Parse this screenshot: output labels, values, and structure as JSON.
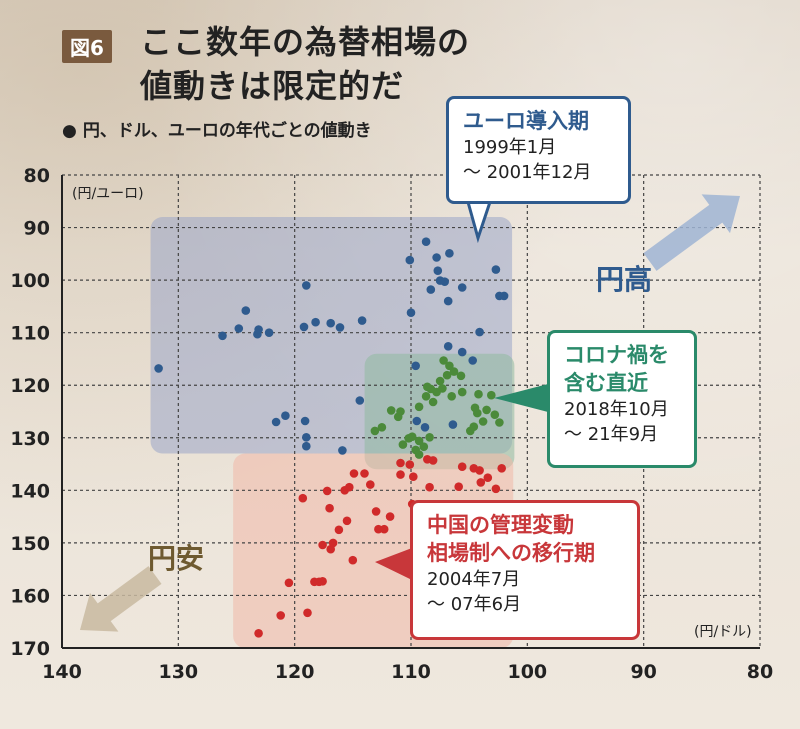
{
  "figure_badge": "図6",
  "title_line1": "ここ数年の為替相場の",
  "title_line2": "値動きは限定的だ",
  "subtitle": "円、ドル、ユーロの年代ごとの値動き",
  "subtitle_bullet": "●",
  "callouts": {
    "euro": {
      "title": "ユーロ導入期",
      "line1": "1999年1月",
      "line2": "～ 2001年12月"
    },
    "corona": {
      "title1": "コロナ禍を",
      "title2": "含む直近",
      "line1": "2018年10月",
      "line2": "～ 21年9月"
    },
    "china": {
      "title1": "中国の管理変動",
      "title2": "相場制への移行期",
      "line1": "2004年7月",
      "line2": "～ 07年6月"
    }
  },
  "arrows": {
    "yen_high": "円高",
    "yen_low": "円安"
  },
  "colors": {
    "euro": "#2f5b8e",
    "corona": "#4b8a3a",
    "china": "#d02a2a",
    "euro_region": "#9aa6c8",
    "corona_region": "#8fb9a0",
    "china_region": "#f0b8a8",
    "callout_euro": "#2f5b8e",
    "callout_corona": "#2a8a6a",
    "callout_china": "#c8373a"
  },
  "chart_data": {
    "type": "scatter",
    "xlabel": "(円/ドル)",
    "ylabel": "(円/ユーロ)",
    "xlim": [
      140,
      80
    ],
    "ylim": [
      80,
      170
    ],
    "x_ticks": [
      140,
      130,
      120,
      110,
      100,
      90,
      80
    ],
    "y_ticks": [
      80,
      90,
      100,
      110,
      120,
      130,
      140,
      150,
      160,
      170
    ],
    "grid": true,
    "series": [
      {
        "name": "ユーロ導入期",
        "points": [
          [
            131.7,
            116.8
          ],
          [
            126.2,
            110.6
          ],
          [
            124.8,
            109.2
          ],
          [
            124.2,
            105.8
          ],
          [
            123.2,
            110.3
          ],
          [
            123.1,
            109.4
          ],
          [
            122.2,
            110.0
          ],
          [
            119.0,
            101.0
          ],
          [
            119.2,
            108.9
          ],
          [
            118.2,
            108.0
          ],
          [
            116.9,
            108.2
          ],
          [
            116.1,
            109.0
          ],
          [
            114.2,
            107.7
          ],
          [
            110.1,
            96.2
          ],
          [
            108.7,
            92.7
          ],
          [
            107.8,
            95.7
          ],
          [
            107.7,
            98.2
          ],
          [
            106.7,
            94.9
          ],
          [
            108.3,
            101.8
          ],
          [
            107.1,
            100.3
          ],
          [
            107.5,
            100.1
          ],
          [
            106.8,
            104.0
          ],
          [
            105.6,
            101.4
          ],
          [
            102.7,
            98.0
          ],
          [
            102.4,
            103.0
          ],
          [
            102.0,
            103.0
          ],
          [
            104.1,
            109.9
          ],
          [
            110.0,
            106.2
          ],
          [
            109.6,
            116.3
          ],
          [
            106.8,
            112.6
          ],
          [
            105.6,
            113.7
          ],
          [
            104.7,
            115.3
          ],
          [
            114.4,
            122.9
          ],
          [
            120.8,
            125.8
          ],
          [
            121.6,
            127.0
          ],
          [
            119.1,
            126.8
          ],
          [
            119.0,
            131.6
          ],
          [
            119.0,
            129.9
          ],
          [
            115.9,
            132.4
          ],
          [
            109.5,
            126.8
          ],
          [
            108.8,
            128.0
          ],
          [
            106.4,
            127.5
          ]
        ]
      },
      {
        "name": "コロナ禍を含む直近",
        "points": [
          [
            113.1,
            128.7
          ],
          [
            112.5,
            128.0
          ],
          [
            111.7,
            124.8
          ],
          [
            111.1,
            126.0
          ],
          [
            110.9,
            125.0
          ],
          [
            110.7,
            131.3
          ],
          [
            110.2,
            130.1
          ],
          [
            109.9,
            129.8
          ],
          [
            109.6,
            132.3
          ],
          [
            109.3,
            130.6
          ],
          [
            109.3,
            133.2
          ],
          [
            108.9,
            131.7
          ],
          [
            108.4,
            129.9
          ],
          [
            109.3,
            124.1
          ],
          [
            108.7,
            122.1
          ],
          [
            108.3,
            120.7
          ],
          [
            107.8,
            121.3
          ],
          [
            107.5,
            119.2
          ],
          [
            107.3,
            120.6
          ],
          [
            106.9,
            118.1
          ],
          [
            106.5,
            122.1
          ],
          [
            106.3,
            117.4
          ],
          [
            107.2,
            115.3
          ],
          [
            106.7,
            116.3
          ],
          [
            105.7,
            118.2
          ],
          [
            105.6,
            121.3
          ],
          [
            104.9,
            128.7
          ],
          [
            104.6,
            127.9
          ],
          [
            104.3,
            125.3
          ],
          [
            104.5,
            124.3
          ],
          [
            103.8,
            126.9
          ],
          [
            103.5,
            124.7
          ],
          [
            102.8,
            125.6
          ],
          [
            103.1,
            121.9
          ],
          [
            102.4,
            127.1
          ],
          [
            104.2,
            121.7
          ],
          [
            108.1,
            123.2
          ],
          [
            108.6,
            120.3
          ]
        ]
      },
      {
        "name": "中国の管理変動相場制への移行期",
        "points": [
          [
            123.1,
            167.2
          ],
          [
            121.2,
            163.8
          ],
          [
            120.5,
            157.6
          ],
          [
            119.3,
            141.5
          ],
          [
            118.9,
            163.3
          ],
          [
            118.3,
            157.4
          ],
          [
            117.9,
            157.4
          ],
          [
            117.6,
            150.4
          ],
          [
            117.2,
            140.1
          ],
          [
            117.0,
            143.4
          ],
          [
            117.6,
            157.3
          ],
          [
            116.9,
            151.2
          ],
          [
            116.7,
            150.0
          ],
          [
            116.2,
            147.5
          ],
          [
            115.7,
            140.0
          ],
          [
            115.3,
            139.4
          ],
          [
            115.5,
            145.8
          ],
          [
            115.0,
            153.3
          ],
          [
            114.9,
            136.8
          ],
          [
            114.0,
            136.8
          ],
          [
            113.5,
            138.9
          ],
          [
            113.0,
            144.0
          ],
          [
            112.8,
            147.4
          ],
          [
            112.3,
            147.4
          ],
          [
            111.8,
            145.0
          ],
          [
            110.9,
            137.0
          ],
          [
            110.9,
            134.8
          ],
          [
            110.1,
            135.1
          ],
          [
            109.8,
            137.4
          ],
          [
            109.9,
            142.6
          ],
          [
            108.6,
            134.1
          ],
          [
            108.1,
            134.3
          ],
          [
            108.4,
            139.4
          ],
          [
            107.3,
            148.4
          ],
          [
            106.8,
            145.5
          ],
          [
            105.9,
            139.3
          ],
          [
            105.6,
            135.5
          ],
          [
            104.6,
            135.8
          ],
          [
            104.1,
            136.2
          ],
          [
            104.0,
            138.5
          ],
          [
            103.4,
            137.6
          ],
          [
            102.7,
            139.7
          ],
          [
            102.2,
            135.8
          ]
        ]
      }
    ],
    "regions": [
      {
        "name": "ユーロ導入期",
        "x": [
          131.7,
          102.0
        ],
        "y": [
          88,
          133
        ]
      },
      {
        "name": "コロナ禍を含む直近",
        "x": [
          113.3,
          101.8
        ],
        "y": [
          114,
          136
        ]
      },
      {
        "name": "中国の管理変動相場制への移行期",
        "x": [
          124.6,
          101.9
        ],
        "y": [
          133,
          170
        ]
      }
    ]
  }
}
